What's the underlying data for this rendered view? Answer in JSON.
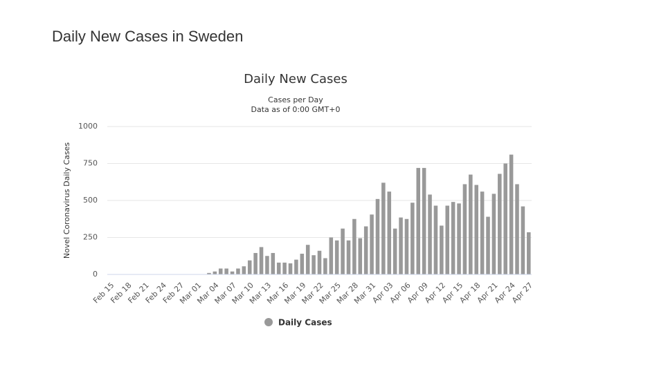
{
  "page_title": "Daily New Cases in Sweden",
  "chart_data": {
    "type": "bar",
    "title": "Daily New Cases",
    "subtitle": [
      "Cases per Day",
      "Data as of 0:00 GMT+0"
    ],
    "y_label": "Novel Coronavirus Daily Cases",
    "categories": [
      "Feb 15",
      null,
      null,
      "Feb 18",
      null,
      null,
      "Feb 21",
      null,
      null,
      "Feb 24",
      null,
      null,
      "Feb 27",
      null,
      null,
      "Mar 01",
      null,
      null,
      "Mar 04",
      null,
      null,
      "Mar 07",
      null,
      null,
      "Mar 10",
      null,
      null,
      "Mar 13",
      null,
      null,
      "Mar 16",
      null,
      null,
      "Mar 19",
      null,
      null,
      "Mar 22",
      null,
      null,
      "Mar 25",
      null,
      null,
      "Mar 28",
      null,
      null,
      "Mar 31",
      null,
      null,
      "Apr 03",
      null,
      null,
      "Apr 06",
      null,
      null,
      "Apr 09",
      null,
      null,
      "Apr 12",
      null,
      null,
      "Apr 15",
      null,
      null,
      "Apr 18",
      null,
      null,
      "Apr 21",
      null,
      null,
      "Apr 24",
      null,
      null,
      "Apr 27"
    ],
    "series": [
      {
        "name": "Daily Cases",
        "color": "#999999",
        "values": [
          0,
          0,
          0,
          0,
          0,
          0,
          0,
          0,
          0,
          0,
          0,
          0,
          0,
          0,
          0,
          0,
          0,
          10,
          20,
          40,
          40,
          20,
          40,
          55,
          95,
          145,
          185,
          125,
          145,
          80,
          80,
          75,
          100,
          140,
          200,
          130,
          160,
          110,
          250,
          230,
          310,
          230,
          375,
          245,
          325,
          405,
          510,
          620,
          560,
          310,
          385,
          375,
          485,
          720,
          720,
          540,
          465,
          330,
          465,
          490,
          480,
          610,
          675,
          605,
          560,
          390,
          545,
          680,
          750,
          810,
          610,
          460,
          285
        ]
      }
    ],
    "ylim": [
      0,
      1000
    ],
    "yticks": [
      0,
      250,
      500,
      750,
      1000
    ],
    "grid": true
  }
}
